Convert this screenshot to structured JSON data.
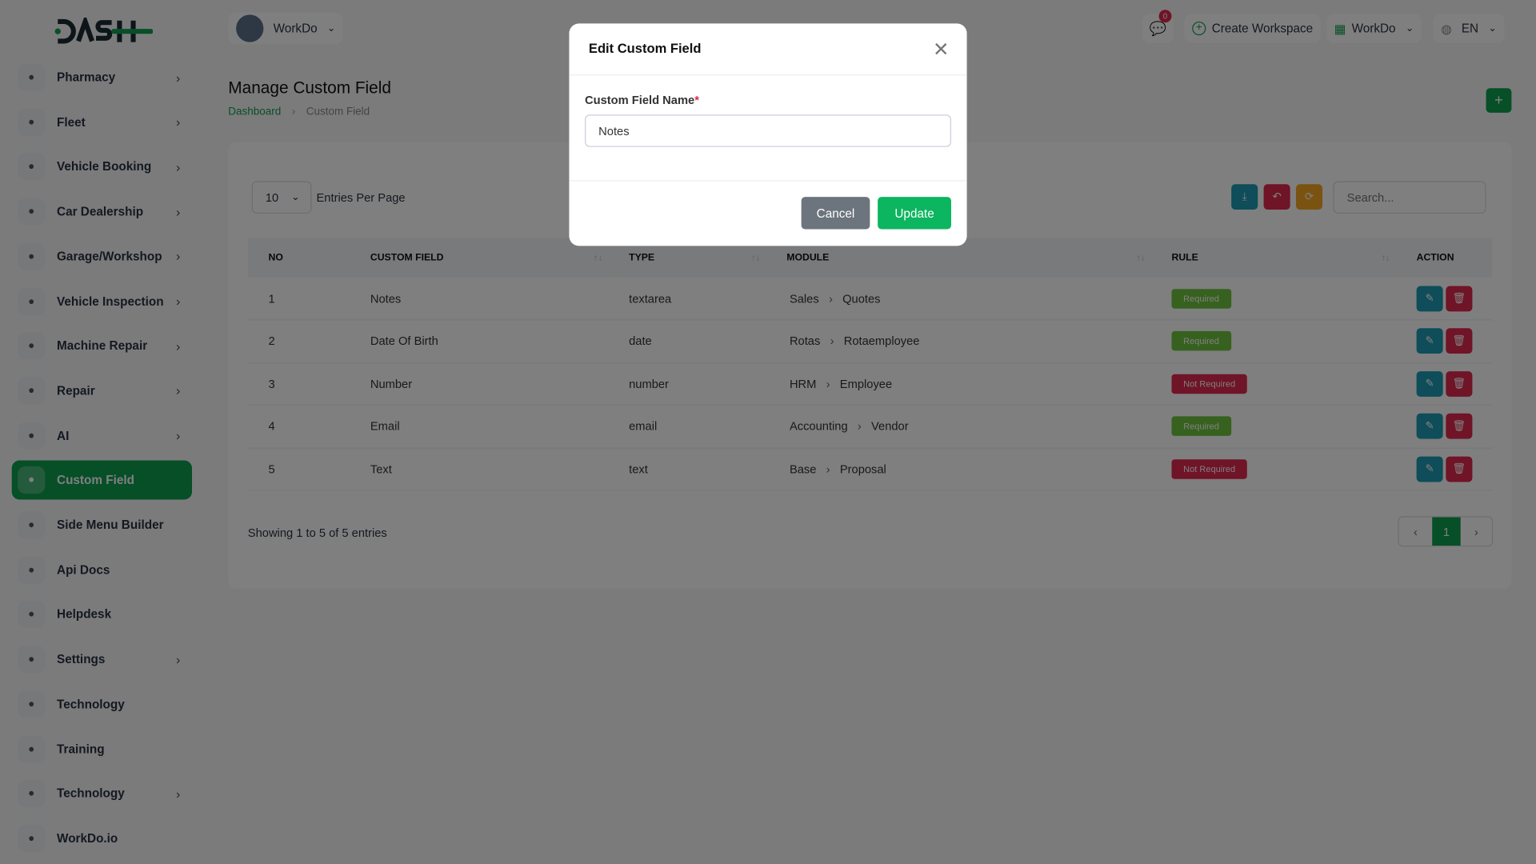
{
  "brand": {
    "logo_text": "DASH",
    "accent": "#0e9f4f"
  },
  "header": {
    "workspace": "WorkDo",
    "notifications_count": "0",
    "create_workspace": "Create Workspace",
    "user_workspace": "WorkDo",
    "language": "EN"
  },
  "sidebar": {
    "items": [
      {
        "label": "Pharmacy",
        "icon": "clipboard-icon",
        "chevron": true
      },
      {
        "label": "Fleet",
        "icon": "truck-icon",
        "chevron": true
      },
      {
        "label": "Vehicle Booking",
        "icon": "calendar-icon",
        "chevron": true
      },
      {
        "label": "Car Dealership",
        "icon": "car-icon",
        "chevron": true
      },
      {
        "label": "Garage/Workshop",
        "icon": "wrench-icon",
        "chevron": true
      },
      {
        "label": "Vehicle Inspection",
        "icon": "bike-icon",
        "chevron": true
      },
      {
        "label": "Machine Repair",
        "icon": "gear-icon",
        "chevron": true
      },
      {
        "label": "Repair",
        "icon": "tool-icon",
        "chevron": true
      },
      {
        "label": "AI",
        "icon": "ai-icon",
        "chevron": true
      },
      {
        "label": "Custom Field",
        "icon": "plus-circle-icon",
        "chevron": false,
        "active": true
      },
      {
        "label": "Side Menu Builder",
        "icon": "plus-circle-icon",
        "chevron": false
      },
      {
        "label": "Api Docs",
        "icon": "api-icon",
        "chevron": false
      },
      {
        "label": "Helpdesk",
        "icon": "headset-icon",
        "chevron": false
      },
      {
        "label": "Settings",
        "icon": "settings-icon",
        "chevron": true
      },
      {
        "label": "Technology",
        "icon": "network-icon",
        "chevron": false
      },
      {
        "label": "Training",
        "icon": "training-icon",
        "chevron": false
      },
      {
        "label": "Technology",
        "icon": "broadcast-icon",
        "chevron": true
      },
      {
        "label": "WorkDo.io",
        "icon": "document-icon",
        "chevron": false
      }
    ]
  },
  "page": {
    "title": "Manage Custom Field",
    "breadcrumb": [
      "Dashboard",
      "Custom Field"
    ]
  },
  "table": {
    "entries_value": "10",
    "entries_label": "Entries Per Page",
    "search_placeholder": "Search...",
    "columns": [
      "NO",
      "CUSTOM FIELD",
      "TYPE",
      "MODULE",
      "RULE",
      "ACTION"
    ],
    "rows": [
      {
        "no": "1",
        "field": "Notes",
        "type": "textarea",
        "module": "Sales",
        "sub": "Quotes",
        "rule": "Required"
      },
      {
        "no": "2",
        "field": "Date Of Birth",
        "type": "date",
        "module": "Rotas",
        "sub": "Rotaemployee",
        "rule": "Required"
      },
      {
        "no": "3",
        "field": "Number",
        "type": "number",
        "module": "HRM",
        "sub": "Employee",
        "rule": "Not Required"
      },
      {
        "no": "4",
        "field": "Email",
        "type": "email",
        "module": "Accounting",
        "sub": "Vendor",
        "rule": "Required"
      },
      {
        "no": "5",
        "field": "Text",
        "type": "text",
        "module": "Base",
        "sub": "Proposal",
        "rule": "Not Required"
      }
    ],
    "showing": "Showing 1 to 5 of 5 entries",
    "current_page": "1",
    "rule_colors": {
      "Required": "#6fc33f",
      "Not Required": "#e0284f"
    }
  },
  "modal": {
    "title": "Edit Custom Field",
    "field_label": "Custom Field Name",
    "required_mark": "*",
    "field_value": "Notes",
    "cancel": "Cancel",
    "update": "Update"
  }
}
